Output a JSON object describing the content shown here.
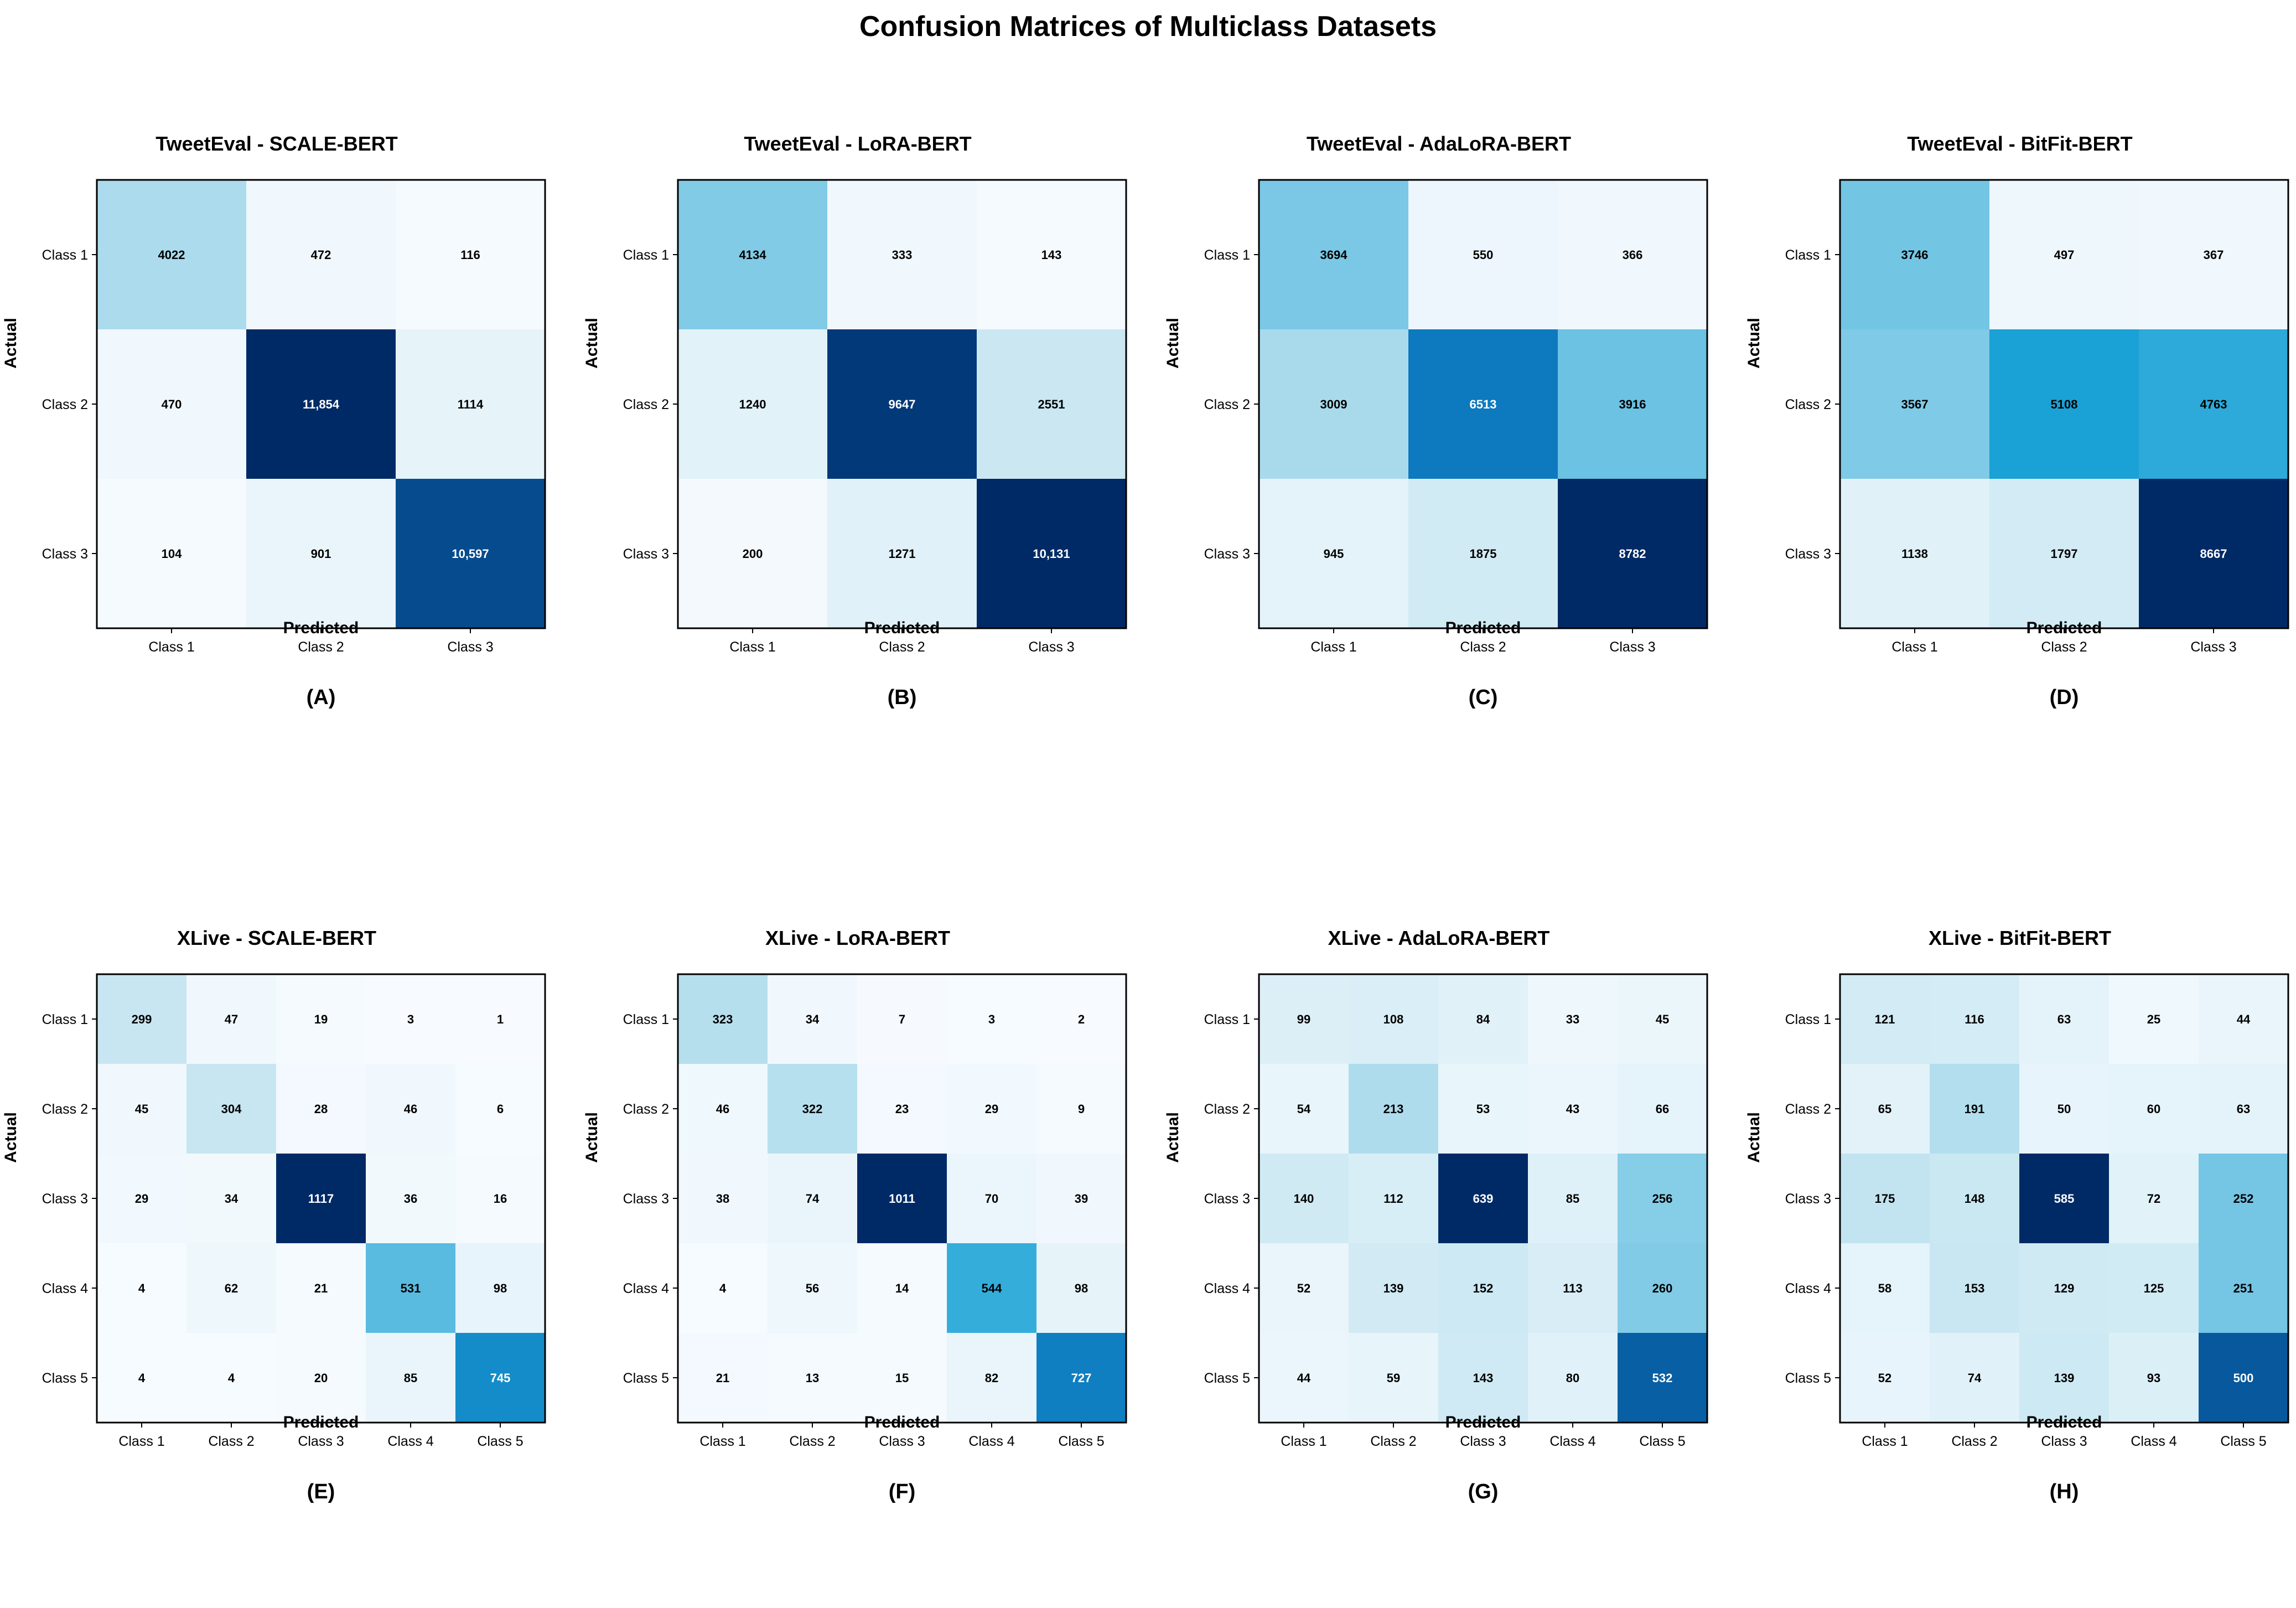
{
  "figure": {
    "title": "Confusion Matrices of Multiclass Datasets"
  },
  "colors": {
    "low": "#f7fbff",
    "mid": "#c2e4f0",
    "cyan": "#1ba3d6",
    "blue": "#0a6fb8",
    "high": "#002a66",
    "border": "#000000"
  },
  "chart_data": [
    {
      "type": "heatmap",
      "panel": "(A)",
      "title": "TweetEval - SCALE-BERT",
      "xlabel": "Predicted",
      "ylabel": "Actual",
      "x_categories": [
        "Class 1",
        "Class 2",
        "Class 3"
      ],
      "y_categories": [
        "Class 1",
        "Class 2",
        "Class 3"
      ],
      "values": [
        [
          4022,
          472,
          116
        ],
        [
          470,
          11854,
          1114
        ],
        [
          104,
          901,
          10597
        ]
      ],
      "labels": [
        [
          "4022",
          "472",
          "116"
        ],
        [
          "470",
          "11,854",
          "1114"
        ],
        [
          "104",
          "901",
          "10,597"
        ]
      ]
    },
    {
      "type": "heatmap",
      "panel": "(B)",
      "title": "TweetEval - LoRA-BERT",
      "xlabel": "Predicted",
      "ylabel": "Actual",
      "x_categories": [
        "Class 1",
        "Class 2",
        "Class 3"
      ],
      "y_categories": [
        "Class 1",
        "Class 2",
        "Class 3"
      ],
      "values": [
        [
          4134,
          333,
          143
        ],
        [
          1240,
          9647,
          2551
        ],
        [
          200,
          1271,
          10131
        ]
      ],
      "labels": [
        [
          "4134",
          "333",
          "143"
        ],
        [
          "1240",
          "9647",
          "2551"
        ],
        [
          "200",
          "1271",
          "10,131"
        ]
      ]
    },
    {
      "type": "heatmap",
      "panel": "(C)",
      "title": "TweetEval - AdaLoRA-BERT",
      "xlabel": "Predicted",
      "ylabel": "Actual",
      "x_categories": [
        "Class 1",
        "Class 2",
        "Class 3"
      ],
      "y_categories": [
        "Class 1",
        "Class 2",
        "Class 3"
      ],
      "values": [
        [
          3694,
          550,
          366
        ],
        [
          3009,
          6513,
          3916
        ],
        [
          945,
          1875,
          8782
        ]
      ],
      "labels": [
        [
          "3694",
          "550",
          "366"
        ],
        [
          "3009",
          "6513",
          "3916"
        ],
        [
          "945",
          "1875",
          "8782"
        ]
      ]
    },
    {
      "type": "heatmap",
      "panel": "(D)",
      "title": "TweetEval - BitFit-BERT",
      "xlabel": "Predicted",
      "ylabel": "Actual",
      "x_categories": [
        "Class 1",
        "Class 2",
        "Class 3"
      ],
      "y_categories": [
        "Class 1",
        "Class 2",
        "Class 3"
      ],
      "values": [
        [
          3746,
          497,
          367
        ],
        [
          3567,
          5108,
          4763
        ],
        [
          1138,
          1797,
          8667
        ]
      ],
      "labels": [
        [
          "3746",
          "497",
          "367"
        ],
        [
          "3567",
          "5108",
          "4763"
        ],
        [
          "1138",
          "1797",
          "8667"
        ]
      ]
    },
    {
      "type": "heatmap",
      "panel": "(E)",
      "title": "XLive - SCALE-BERT",
      "xlabel": "Predicted",
      "ylabel": "Actual",
      "x_categories": [
        "Class 1",
        "Class 2",
        "Class 3",
        "Class 4",
        "Class 5"
      ],
      "y_categories": [
        "Class 1",
        "Class 2",
        "Class 3",
        "Class 4",
        "Class 5"
      ],
      "values": [
        [
          299,
          47,
          19,
          3,
          1
        ],
        [
          45,
          304,
          28,
          46,
          6
        ],
        [
          29,
          34,
          1117,
          36,
          16
        ],
        [
          4,
          62,
          21,
          531,
          98
        ],
        [
          4,
          4,
          20,
          85,
          745
        ]
      ],
      "labels": [
        [
          "299",
          "47",
          "19",
          "3",
          "1"
        ],
        [
          "45",
          "304",
          "28",
          "46",
          "6"
        ],
        [
          "29",
          "34",
          "1117",
          "36",
          "16"
        ],
        [
          "4",
          "62",
          "21",
          "531",
          "98"
        ],
        [
          "4",
          "4",
          "20",
          "85",
          "745"
        ]
      ]
    },
    {
      "type": "heatmap",
      "panel": "(F)",
      "title": "XLive - LoRA-BERT",
      "xlabel": "Predicted",
      "ylabel": "Actual",
      "x_categories": [
        "Class 1",
        "Class 2",
        "Class 3",
        "Class 4",
        "Class 5"
      ],
      "y_categories": [
        "Class 1",
        "Class 2",
        "Class 3",
        "Class 4",
        "Class 5"
      ],
      "values": [
        [
          323,
          34,
          7,
          3,
          2
        ],
        [
          46,
          322,
          23,
          29,
          9
        ],
        [
          38,
          74,
          1011,
          70,
          39
        ],
        [
          4,
          56,
          14,
          544,
          98
        ],
        [
          21,
          13,
          15,
          82,
          727
        ]
      ],
      "labels": [
        [
          "323",
          "34",
          "7",
          "3",
          "2"
        ],
        [
          "46",
          "322",
          "23",
          "29",
          "9"
        ],
        [
          "38",
          "74",
          "1011",
          "70",
          "39"
        ],
        [
          "4",
          "56",
          "14",
          "544",
          "98"
        ],
        [
          "21",
          "13",
          "15",
          "82",
          "727"
        ]
      ]
    },
    {
      "type": "heatmap",
      "panel": "(G)",
      "title": "XLive - AdaLoRA-BERT",
      "xlabel": "Predicted",
      "ylabel": "Actual",
      "x_categories": [
        "Class 1",
        "Class 2",
        "Class 3",
        "Class 4",
        "Class 5"
      ],
      "y_categories": [
        "Class 1",
        "Class 2",
        "Class 3",
        "Class 4",
        "Class 5"
      ],
      "values": [
        [
          99,
          108,
          84,
          33,
          45
        ],
        [
          54,
          213,
          53,
          43,
          66
        ],
        [
          140,
          112,
          639,
          85,
          256
        ],
        [
          52,
          139,
          152,
          113,
          260
        ],
        [
          44,
          59,
          143,
          80,
          532
        ]
      ],
      "labels": [
        [
          "99",
          "108",
          "84",
          "33",
          "45"
        ],
        [
          "54",
          "213",
          "53",
          "43",
          "66"
        ],
        [
          "140",
          "112",
          "639",
          "85",
          "256"
        ],
        [
          "52",
          "139",
          "152",
          "113",
          "260"
        ],
        [
          "44",
          "59",
          "143",
          "80",
          "532"
        ]
      ]
    },
    {
      "type": "heatmap",
      "panel": "(H)",
      "title": "XLive - BitFit-BERT",
      "xlabel": "Predicted",
      "ylabel": "Actual",
      "x_categories": [
        "Class 1",
        "Class 2",
        "Class 3",
        "Class 4",
        "Class 5"
      ],
      "y_categories": [
        "Class 1",
        "Class 2",
        "Class 3",
        "Class 4",
        "Class 5"
      ],
      "values": [
        [
          121,
          116,
          63,
          25,
          44
        ],
        [
          65,
          191,
          50,
          60,
          63
        ],
        [
          175,
          148,
          585,
          72,
          252
        ],
        [
          58,
          153,
          129,
          125,
          251
        ],
        [
          52,
          74,
          139,
          93,
          500
        ]
      ],
      "labels": [
        [
          "121",
          "116",
          "63",
          "25",
          "44"
        ],
        [
          "65",
          "191",
          "50",
          "60",
          "63"
        ],
        [
          "175",
          "148",
          "585",
          "72",
          "252"
        ],
        [
          "58",
          "153",
          "129",
          "125",
          "251"
        ],
        [
          "52",
          "74",
          "139",
          "93",
          "500"
        ]
      ]
    }
  ]
}
